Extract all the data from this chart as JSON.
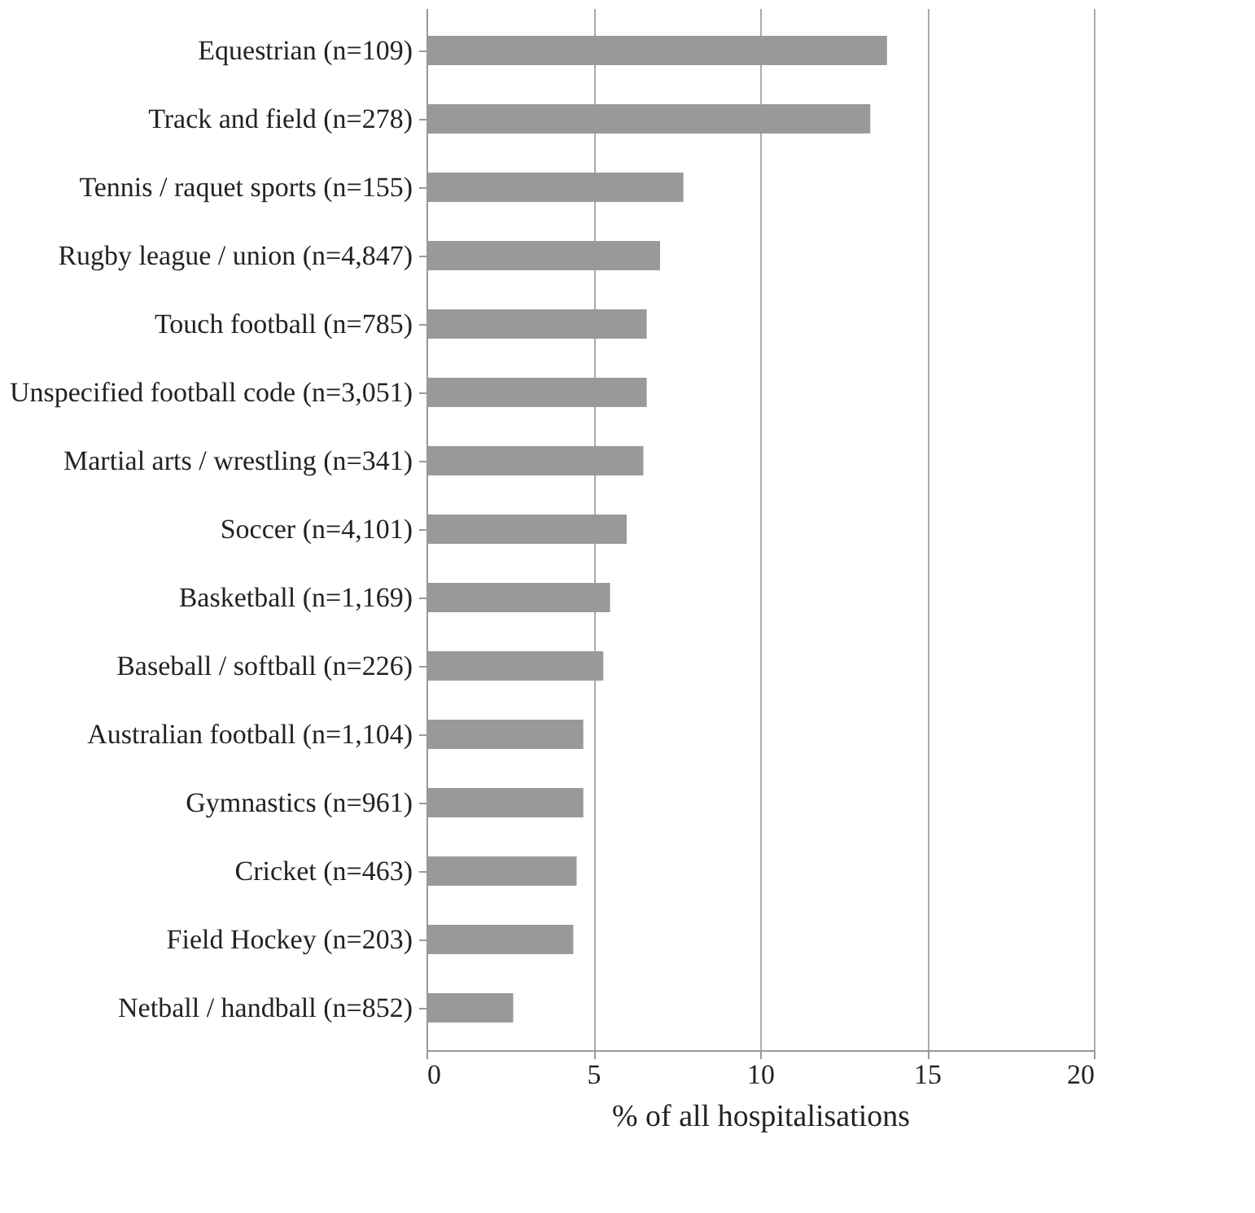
{
  "chart_data": {
    "type": "bar",
    "orientation": "horizontal",
    "xlabel": "% of all hospitalisations",
    "categories": [
      "Equestrian (n=109)",
      "Track and field (n=278)",
      "Tennis / raquet sports (n=155)",
      "Rugby league / union (n=4,847)",
      "Touch football (n=785)",
      "Unspecified football code (n=3,051)",
      "Martial arts / wrestling (n=341)",
      "Soccer (n=4,101)",
      "Basketball (n=1,169)",
      "Baseball / softball (n=226)",
      "Australian football (n=1,104)",
      "Gymnastics (n=961)",
      "Cricket (n=463)",
      "Field Hockey (n=203)",
      "Netball / handball (n=852)"
    ],
    "values": [
      13.8,
      13.3,
      7.7,
      7.0,
      6.6,
      6.6,
      6.5,
      6.0,
      5.5,
      5.3,
      4.7,
      4.7,
      4.5,
      4.4,
      2.6
    ],
    "color": "#999999",
    "xlim": [
      0,
      20
    ],
    "xticks": [
      0,
      5,
      10,
      15,
      20
    ],
    "grid": "x"
  }
}
